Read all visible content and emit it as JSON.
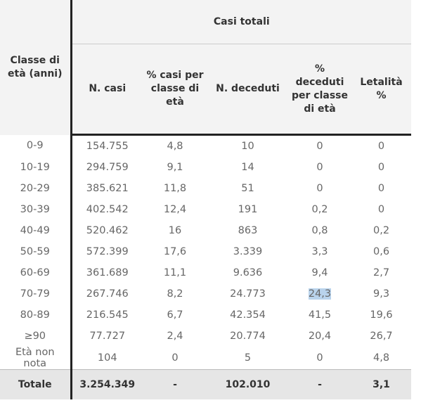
{
  "table": {
    "corner": "Classe di età (anni)",
    "group_header": "Casi totali",
    "columns": [
      "N. casi",
      "% casi per classe di età",
      "N. deceduti",
      "% deceduti per classe di età",
      "Letalità %"
    ],
    "rows": [
      [
        "0-9",
        "154.755",
        "4,8",
        "10",
        "0",
        "0"
      ],
      [
        "10-19",
        "294.759",
        "9,1",
        "14",
        "0",
        "0"
      ],
      [
        "20-29",
        "385.621",
        "11,8",
        "51",
        "0",
        "0"
      ],
      [
        "30-39",
        "402.542",
        "12,4",
        "191",
        "0,2",
        "0"
      ],
      [
        "40-49",
        "520.462",
        "16",
        "863",
        "0,8",
        "0,2"
      ],
      [
        "50-59",
        "572.399",
        "17,6",
        "3.339",
        "3,3",
        "0,6"
      ],
      [
        "60-69",
        "361.689",
        "11,1",
        "9.636",
        "9,4",
        "2,7"
      ],
      [
        "70-79",
        "267.746",
        "8,2",
        "24.773",
        "24,3",
        "9,3"
      ],
      [
        "80-89",
        "216.545",
        "6,7",
        "42.354",
        "41,5",
        "19,6"
      ],
      [
        "≥90",
        "77.727",
        "2,4",
        "20.774",
        "20,4",
        "26,7"
      ],
      [
        "Età non nota",
        "104",
        "0",
        "5",
        "0",
        "4,8"
      ]
    ],
    "total": [
      "Totale",
      "3.254.349",
      "-",
      "102.010",
      "-",
      "3,1"
    ]
  }
}
